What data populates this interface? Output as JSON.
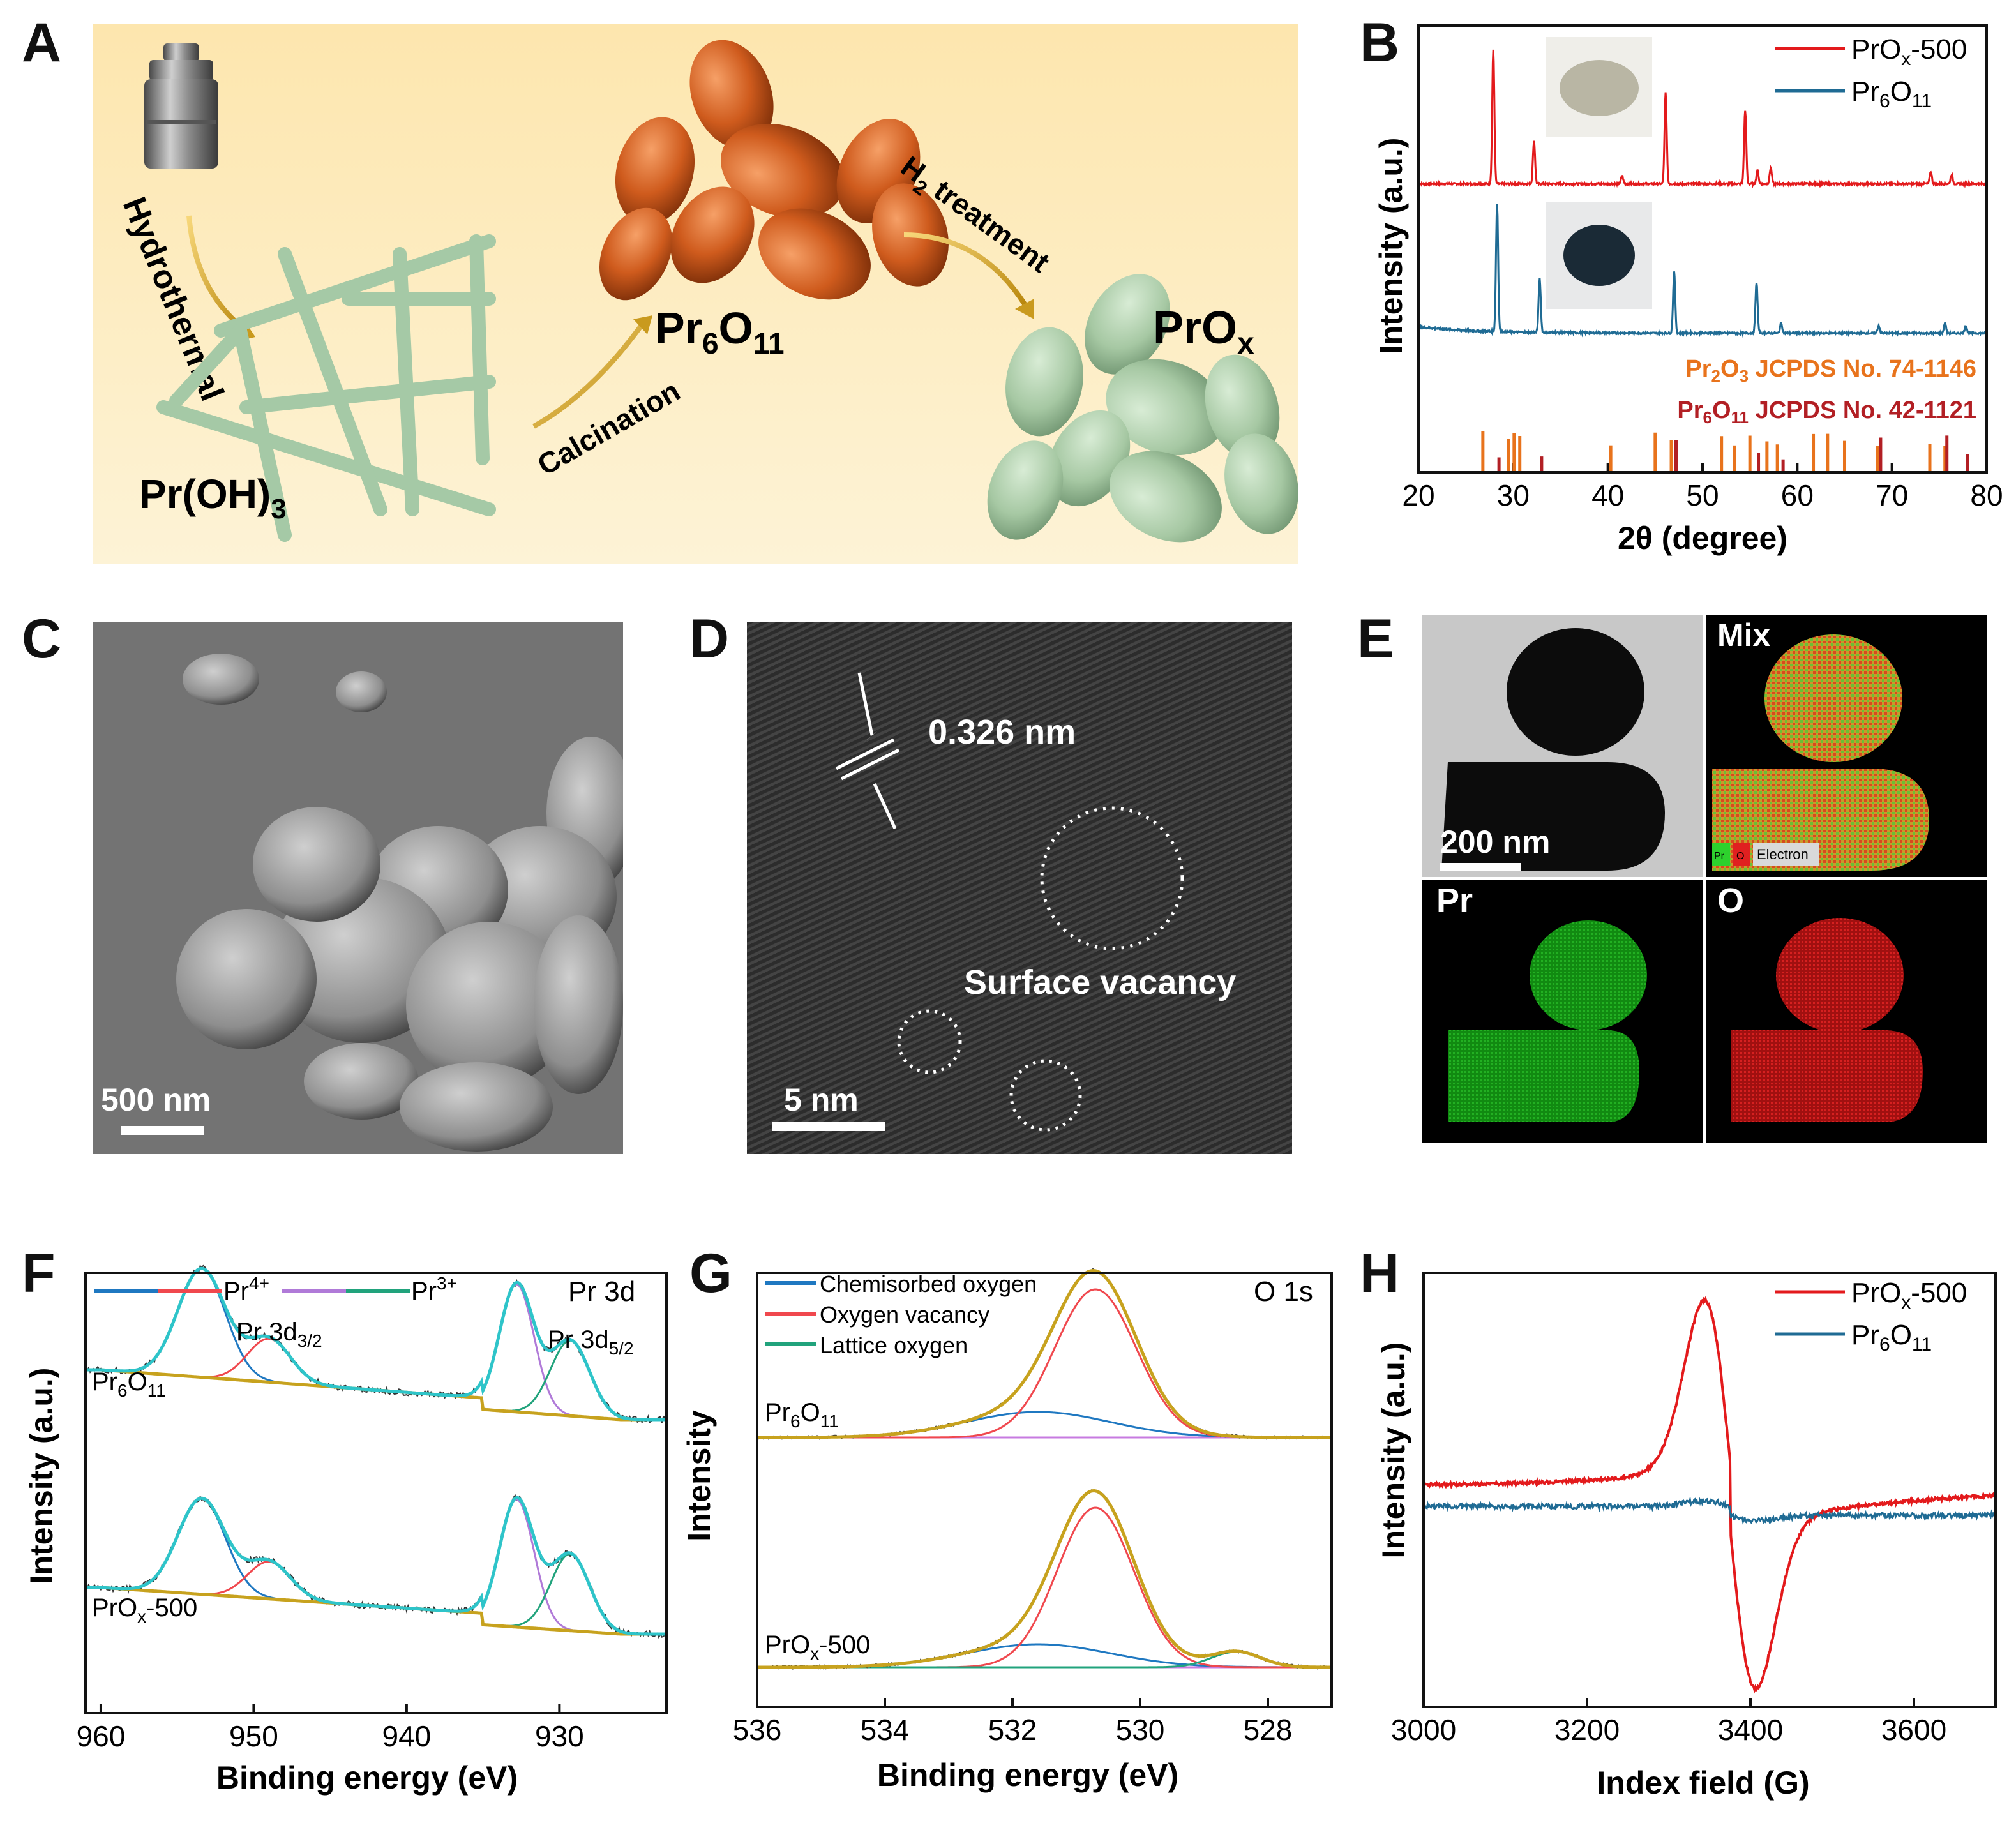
{
  "panels": {
    "a": "A",
    "b": "B",
    "c": "C",
    "d": "D",
    "e": "E",
    "f": "F",
    "g": "G",
    "h": "H"
  },
  "scheme": {
    "hydrothermal": "Hydrothermal",
    "pr_oh3": "Pr(OH)",
    "pr_oh3_sub": "3",
    "calcination": "Calcination",
    "pr6o11_pr": "Pr",
    "pr6o11_6": "6",
    "pr6o11_o": "O",
    "pr6o11_11": "11",
    "h2_h": "H",
    "h2_sub": "2",
    "h2_treatment": " treatment",
    "prox": "PrO",
    "prox_sub": "x",
    "colors": {
      "background_top": "#fde9b8",
      "rod": "#a9ccab",
      "sample_orange": "#c9551a",
      "sample_green": "#a7c9a5"
    }
  },
  "sem": {
    "scale_bar": "500 nm"
  },
  "hrtem": {
    "lattice_spacing": "0.326 nm",
    "annotation": "Surface vacancy",
    "scale_bar": "5 nm"
  },
  "eds": {
    "mix_label": "Mix",
    "pr_label": "Pr",
    "o_label": "O",
    "scale_bar": "200 nm",
    "legend_pr": "Pr",
    "legend_o": "O",
    "legend_electron": "Electron"
  },
  "chart_data": [
    {
      "panel": "B",
      "type": "line",
      "title": "",
      "xlabel": "2θ (degree)",
      "ylabel": "Intensity (a.u.)",
      "xlim": [
        20,
        80
      ],
      "xticks": [
        "20",
        "30",
        "40",
        "50",
        "60",
        "70",
        "80"
      ],
      "legend": [
        {
          "name_main": "PrO",
          "name_sub": "x",
          "name_tail": "-500",
          "color": "#e31a1c"
        },
        {
          "name_main": "Pr",
          "name_sub": "6",
          "name_mid": "O",
          "name_sub2": "11",
          "color": "#1f6b94"
        }
      ],
      "series": [
        {
          "name": "PrOx-500",
          "color": "#e31a1c",
          "peaks": [
            [
              27.9,
              1.0
            ],
            [
              32.2,
              0.32
            ],
            [
              41.5,
              0.06
            ],
            [
              46.1,
              0.68
            ],
            [
              54.5,
              0.55
            ],
            [
              55.8,
              0.1
            ],
            [
              57.2,
              0.12
            ],
            [
              74.1,
              0.09
            ],
            [
              76.3,
              0.07
            ]
          ]
        },
        {
          "name": "Pr6O11",
          "color": "#1f6b94",
          "peaks": [
            [
              28.3,
              1.0
            ],
            [
              32.8,
              0.42
            ],
            [
              47.0,
              0.48
            ],
            [
              55.7,
              0.4
            ],
            [
              58.3,
              0.08
            ],
            [
              68.6,
              0.06
            ],
            [
              75.6,
              0.08
            ],
            [
              77.8,
              0.06
            ]
          ]
        }
      ],
      "reference_labels": [
        {
          "main": "Pr",
          "sub": "2",
          "mid": "O",
          "sub2": "3",
          "tail": " JCPDS No. 74-1146",
          "color": "#e8731c"
        },
        {
          "main": "Pr",
          "sub": "6",
          "mid": "O",
          "sub2": "11",
          "tail": " JCPDS No. 42-1121",
          "color": "#b21f24"
        }
      ],
      "reference_pr2o3": [
        26.8,
        29.5,
        30.1,
        30.7,
        40.3,
        45.0,
        46.7,
        52.0,
        53.4,
        55.0,
        56.8,
        57.9,
        61.7,
        63.2,
        65.0,
        68.5,
        74.0,
        75.6
      ],
      "reference_pr6o11": [
        28.3,
        32.8,
        47.0,
        55.7,
        58.3,
        68.6,
        75.6,
        77.8
      ]
    },
    {
      "panel": "F",
      "type": "line",
      "xlabel": "Binding energy (eV)",
      "ylabel": "Intensity (a.u.)",
      "xlim": [
        961,
        923
      ],
      "xticks": [
        "960",
        "950",
        "940",
        "930"
      ],
      "legend_ions": [
        "Pr",
        "4+",
        "Pr",
        "3+"
      ],
      "legend_colors": [
        "#1f78c1",
        "#f0484e",
        "#b07ad8",
        "#21a37c"
      ],
      "region_label": "Pr 3d",
      "peak_labels": {
        "d32_main": "Pr 3d",
        "d32_sub": "3/2",
        "d52_main": "Pr 3d",
        "d52_sub": "5/2"
      },
      "sample_labels": [
        {
          "main": "Pr",
          "sub": "6",
          "mid": "O",
          "sub2": "11"
        },
        {
          "main": "PrO",
          "sub": "x",
          "tail": "-500"
        }
      ],
      "peaks": [
        953.4,
        949.0,
        932.8,
        929.3
      ]
    },
    {
      "panel": "G",
      "type": "line",
      "xlabel": "Binding energy (eV)",
      "ylabel": "Intensity",
      "xlim": [
        536,
        527
      ],
      "xticks": [
        "536",
        "534",
        "532",
        "530",
        "528"
      ],
      "legend": [
        {
          "name": "Chemisorbed oxygen",
          "color": "#1f78c1"
        },
        {
          "name": "Oxygen vacancy",
          "color": "#f0484e"
        },
        {
          "name": "Lattice oxygen",
          "color": "#21a37c"
        }
      ],
      "region_label": "O 1s",
      "sample_labels": [
        {
          "main": "Pr",
          "sub": "6",
          "mid": "O",
          "sub2": "11"
        },
        {
          "main": "PrO",
          "sub": "x",
          "tail": "-500"
        }
      ],
      "peaks": [
        531.6,
        530.7,
        528.5
      ]
    },
    {
      "panel": "H",
      "type": "line",
      "xlabel": "Index field (G)",
      "ylabel": "Intensity (a.u.)",
      "xlim": [
        3000,
        3700
      ],
      "xticks": [
        "3000",
        "3200",
        "3400",
        "3600"
      ],
      "legend": [
        {
          "name_main": "PrO",
          "name_sub": "x",
          "name_tail": "-500",
          "color": "#e31a1c"
        },
        {
          "name_main": "Pr",
          "name_sub": "6",
          "name_mid": "O",
          "name_sub2": "11",
          "color": "#1f6b94"
        }
      ],
      "signal_center_g": 3375,
      "signal_max_g": 3345,
      "signal_min_g": 3410
    }
  ]
}
